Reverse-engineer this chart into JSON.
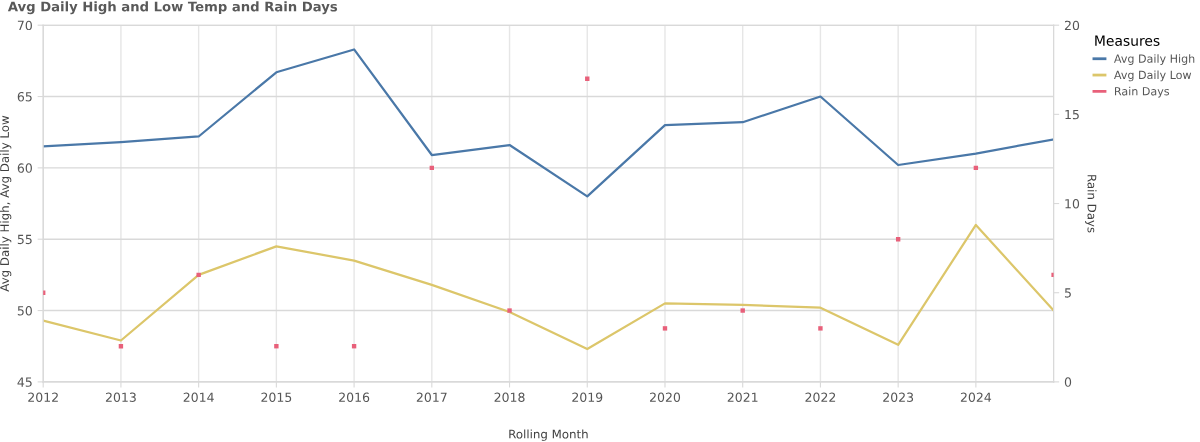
{
  "chart_data": {
    "type": "line",
    "title": "Avg Daily High and Low Temp and Rain Days",
    "xlabel": "Rolling Month",
    "ylabel": "Avg Daily High, Avg Daily Low",
    "y2label": "Rain Days",
    "legend_title": "Measures",
    "x": [
      2012,
      2013,
      2014,
      2015,
      2016,
      2017,
      2018,
      2019,
      2020,
      2021,
      2022,
      2023,
      2024,
      2025
    ],
    "series": [
      {
        "name": "Avg Daily High",
        "color": "#4a78a8",
        "values": [
          61.5,
          61.8,
          62.2,
          66.7,
          68.3,
          60.9,
          61.6,
          58.0,
          63.0,
          63.2,
          65.0,
          60.2,
          61.0,
          62.0
        ]
      },
      {
        "name": "Avg Daily Low",
        "color": "#dcc66a",
        "values": [
          49.3,
          47.9,
          52.5,
          54.5,
          53.5,
          51.8,
          49.9,
          47.3,
          50.5,
          50.4,
          50.2,
          47.6,
          56.0,
          50.0
        ]
      },
      {
        "name": "Rain Days",
        "type": "scatter",
        "axis": "y2",
        "color": "#e8607a",
        "values": [
          5,
          2,
          6,
          2,
          2,
          12,
          4,
          17,
          3,
          4,
          3,
          8,
          12,
          6
        ]
      }
    ],
    "xlim": [
      2012,
      2025
    ],
    "xticks": [
      2012,
      2013,
      2014,
      2015,
      2016,
      2017,
      2018,
      2019,
      2020,
      2021,
      2022,
      2023,
      2024
    ],
    "ylim": [
      45,
      70
    ],
    "yticks": [
      45,
      50,
      55,
      60,
      65,
      70
    ],
    "y2lim": [
      0,
      20
    ],
    "y2ticks": [
      0,
      5,
      10,
      15,
      20
    ],
    "grid": true,
    "legend": "top right"
  }
}
